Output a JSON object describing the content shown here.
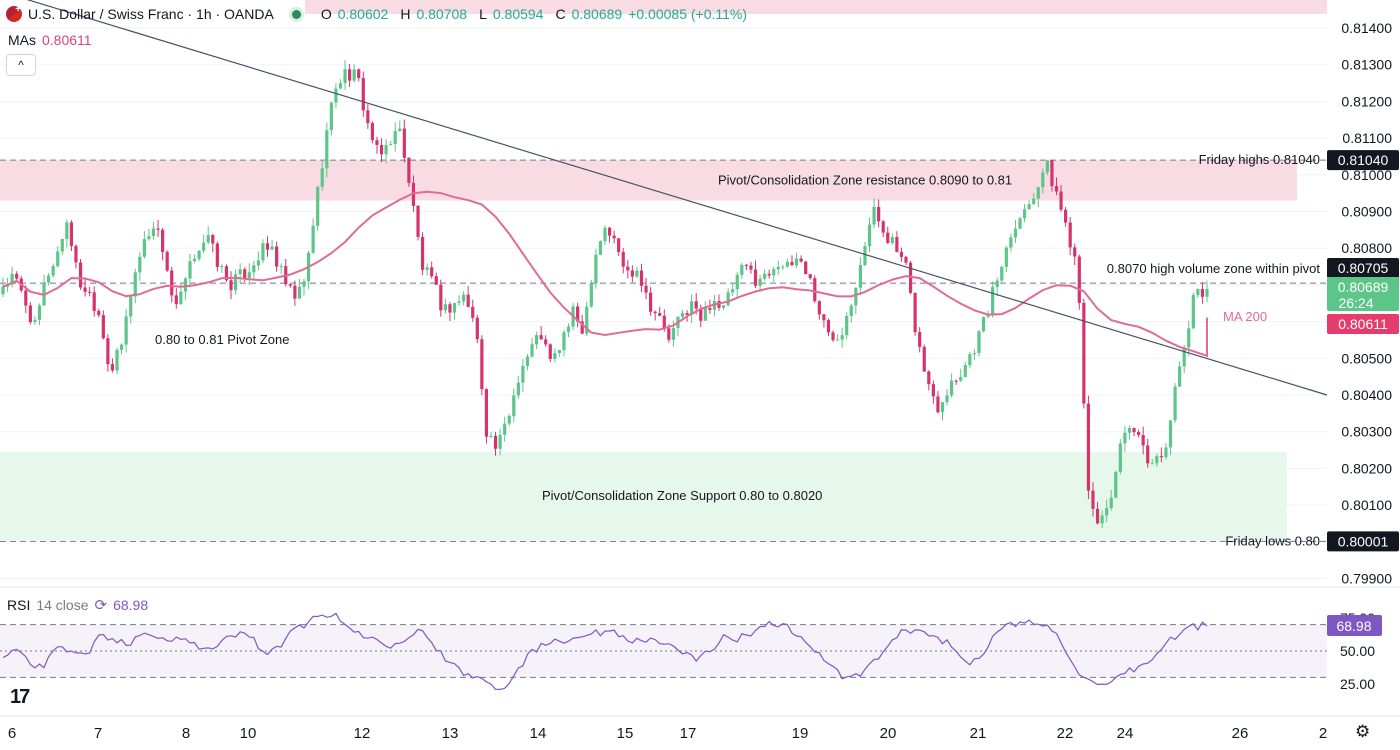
{
  "header": {
    "symbol_title": "U.S. Dollar / Swiss Franc · 1h · OANDA",
    "o_label": "O",
    "o_value": "0.80602",
    "h_label": "H",
    "h_value": "0.80708",
    "l_label": "L",
    "l_value": "0.80594",
    "c_label": "C",
    "c_value": "0.80689",
    "change": "+0.00085 (+0.11%)",
    "mas_label": "MAs",
    "mas_value": "0.80611",
    "collapse_icon": "chevron-up-icon"
  },
  "rsi_legend": {
    "label": "RSI",
    "params": "14 close",
    "value": "68.98"
  },
  "colors": {
    "up": "#26a69a",
    "up_body": "#5cc689",
    "down": "#d6336c",
    "ma": "#e06b95",
    "rsi": "#7e57c2",
    "resistance_zone": "#f9dbe4",
    "support_zone": "#e6f7ec",
    "trendline": "#4a5268",
    "grid": "#f0f3fa"
  },
  "chart_data": [
    {
      "type": "candlestick",
      "title": "U.S. Dollar / Swiss Franc · 1h · OANDA",
      "ylim": [
        0.7985,
        0.8144
      ],
      "y_ticks": [
        "0.81400",
        "0.81300",
        "0.81200",
        "0.81100",
        "0.81000",
        "0.80900",
        "0.80800",
        "0.80700",
        "0.80600",
        "0.80500",
        "0.80400",
        "0.80300",
        "0.80200",
        "0.80100",
        "0.80000",
        "0.79900"
      ],
      "x_tick_labels": [
        "6",
        "7",
        "8",
        "10",
        "12",
        "13",
        "14",
        "15",
        "17",
        "19",
        "20",
        "21",
        "22",
        "24",
        "26",
        "2"
      ],
      "ohlc_anchor_closes": [
        0.807,
        0.8072,
        0.8066,
        0.8058,
        0.8072,
        0.8078,
        0.8088,
        0.8071,
        0.8068,
        0.8062,
        0.8046,
        0.8053,
        0.807,
        0.8081,
        0.8087,
        0.8079,
        0.8062,
        0.8071,
        0.808,
        0.8083,
        0.8076,
        0.807,
        0.8072,
        0.8075,
        0.8079,
        0.808,
        0.8072,
        0.8066,
        0.807,
        0.809,
        0.811,
        0.8125,
        0.8128,
        0.8126,
        0.8113,
        0.8104,
        0.811,
        0.8112,
        0.8094,
        0.8075,
        0.807,
        0.8063,
        0.8065,
        0.8067,
        0.8058,
        0.803,
        0.8025,
        0.8034,
        0.8046,
        0.8052,
        0.8057,
        0.8048,
        0.8055,
        0.8062,
        0.8058,
        0.8078,
        0.8086,
        0.8081,
        0.8073,
        0.8075,
        0.8066,
        0.8061,
        0.8055,
        0.8061,
        0.8065,
        0.806,
        0.8067,
        0.8063,
        0.807,
        0.8075,
        0.8072,
        0.8072,
        0.8077,
        0.8074,
        0.8078,
        0.8072,
        0.8062,
        0.8055,
        0.8058,
        0.8067,
        0.808,
        0.809,
        0.8085,
        0.808,
        0.8074,
        0.8056,
        0.8043,
        0.8037,
        0.8043,
        0.8046,
        0.8051,
        0.8058,
        0.8067,
        0.8077,
        0.8087,
        0.809,
        0.8096,
        0.8103,
        0.8095,
        0.8085,
        0.8075,
        0.801,
        0.8005,
        0.8012,
        0.8026,
        0.8031,
        0.8025,
        0.8021,
        0.8025,
        0.804,
        0.8055,
        0.8069
      ],
      "current_close": 0.80689,
      "ma": {
        "name": "MA 200",
        "last_value": 0.80611
      },
      "price_badges": [
        {
          "value": "0.81040",
          "style": "black"
        },
        {
          "value": "0.80705",
          "style": "black"
        },
        {
          "value": "0.80689",
          "sub": "26:24",
          "style": "green"
        },
        {
          "value": "0.80611",
          "style": "pink"
        },
        {
          "value": "0.80001",
          "style": "black"
        }
      ],
      "zones": [
        {
          "name": "resistance",
          "from": 0.8093,
          "to": 0.8104,
          "label": "Pivot/Consolidation Zone resistance 0.8090 to 0.81"
        },
        {
          "name": "support",
          "from": 0.80005,
          "to": 0.80245,
          "label": "Pivot/Consolidation Zone Support 0.80 to 0.8020"
        }
      ],
      "horizontal_levels": [
        {
          "value": 0.8104,
          "label": "Friday highs 0.81040"
        },
        {
          "value": 0.80705,
          "label": "0.8070 high volume zone within pivot"
        },
        {
          "value": 0.80001,
          "label": "Friday lows 0.80"
        }
      ],
      "annotations": [
        {
          "text": "0.80 to 0.81 Pivot Zone",
          "x_tick": "7",
          "y": 0.8055
        },
        {
          "text": "MA 200",
          "x_tick": "26",
          "y": 0.80615
        }
      ],
      "trendline": {
        "from": {
          "x_tick": "6",
          "y": 0.815
        },
        "to": {
          "x_tick": "2",
          "y": 0.804
        }
      }
    },
    {
      "type": "line",
      "title": "RSI 14 close",
      "ylim": [
        15,
        82
      ],
      "y_ticks": [
        "75.00",
        "50.00",
        "25.00"
      ],
      "levels": [
        70,
        50,
        30
      ],
      "current_value": 68.98,
      "value_badge": "68.98",
      "anchor_values": [
        45,
        52,
        41,
        38,
        55,
        50,
        46,
        62,
        58,
        54,
        66,
        61,
        57,
        62,
        55,
        50,
        58,
        64,
        60,
        48,
        52,
        66,
        72,
        79,
        76,
        68,
        62,
        58,
        55,
        60,
        66,
        58,
        42,
        35,
        30,
        29,
        20,
        33,
        48,
        54,
        60,
        58,
        64,
        63,
        66,
        61,
        56,
        60,
        54,
        48,
        44,
        50,
        60,
        58,
        64,
        70,
        71,
        66,
        56,
        48,
        36,
        28,
        33,
        42,
        54,
        64,
        66,
        62,
        58,
        47,
        41,
        52,
        66,
        70,
        71,
        72,
        64,
        48,
        30,
        22,
        24,
        32,
        38,
        42,
        56,
        63,
        69
      ]
    }
  ]
}
